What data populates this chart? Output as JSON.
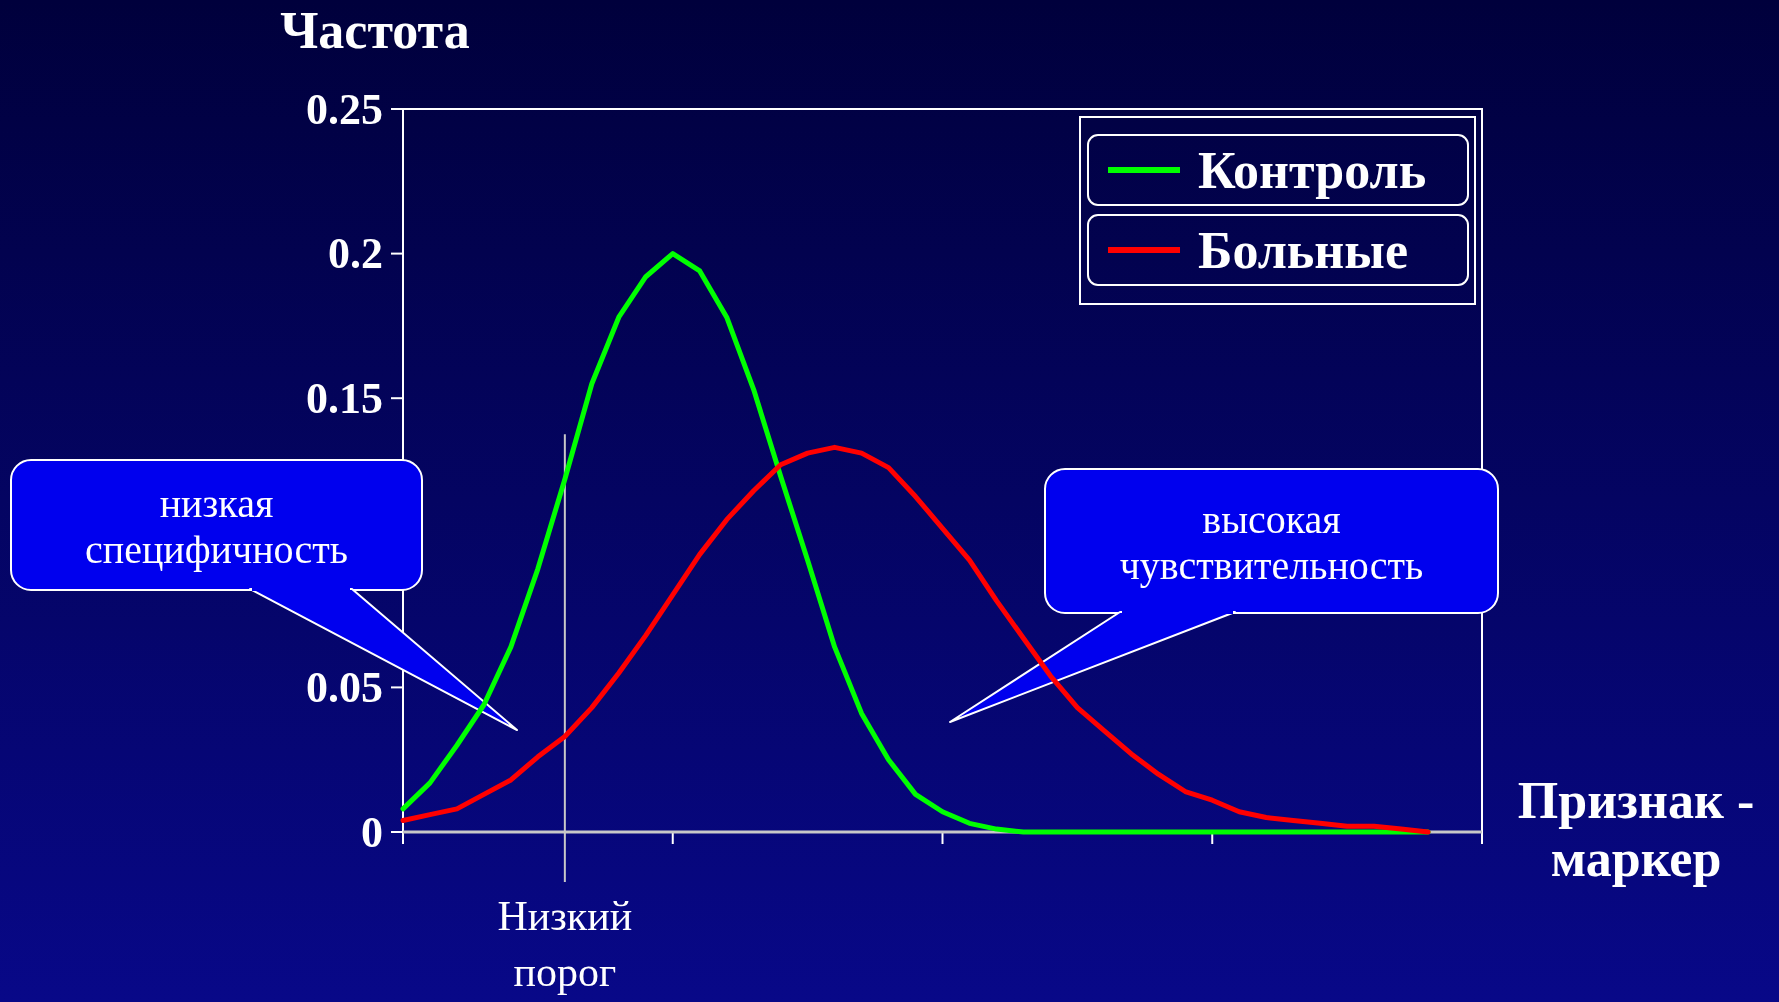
{
  "chart_data": {
    "type": "line",
    "ylabel": "Частота",
    "xlabel": "Признак - маркер",
    "categories": [
      null,
      null,
      null,
      null,
      null,
      null,
      null,
      null,
      null,
      null,
      null,
      null,
      null,
      null,
      null,
      null,
      null,
      null,
      null,
      null,
      null,
      null,
      null,
      null,
      null,
      null,
      null,
      null,
      null,
      null,
      null,
      null,
      null,
      null,
      null,
      null,
      null,
      null,
      null
    ],
    "ylim": [
      0,
      0.25
    ],
    "yticks": [
      0,
      0.05,
      {
        "value": 0.1,
        "label": null
      },
      0.15,
      0.2,
      0.25
    ],
    "tick_labels": "y",
    "legend": "top right",
    "line_style": "solid",
    "series": [
      {
        "name": "Контроль",
        "color": "#00ff00",
        "values": [
          0.008,
          0.017,
          0.03,
          0.044,
          0.064,
          0.091,
          0.122,
          0.155,
          0.178,
          0.192,
          0.2,
          0.194,
          0.178,
          0.153,
          0.123,
          0.094,
          0.064,
          0.041,
          0.025,
          0.013,
          0.007,
          0.003,
          0.001,
          0,
          0,
          0,
          0,
          0,
          0,
          0,
          0,
          0,
          0,
          0,
          0,
          0,
          0,
          0,
          0
        ]
      },
      {
        "name": "Больные",
        "color": "#ff0000",
        "values": [
          0.004,
          0.006,
          0.008,
          0.013,
          0.018,
          0.026,
          0.033,
          0.043,
          0.055,
          0.068,
          0.082,
          0.096,
          0.108,
          0.118,
          0.127,
          0.131,
          0.133,
          0.131,
          0.126,
          0.116,
          0.105,
          0.094,
          0.08,
          0.067,
          0.054,
          0.043,
          0.035,
          0.027,
          0.02,
          0.014,
          0.011,
          0.007,
          0.005,
          0.004,
          0.003,
          0.002,
          0.002,
          0.001,
          0
        ]
      }
    ],
    "annotations": [
      "низкая специфичность",
      "высокая чувствительность",
      "Низкий порог"
    ]
  }
}
